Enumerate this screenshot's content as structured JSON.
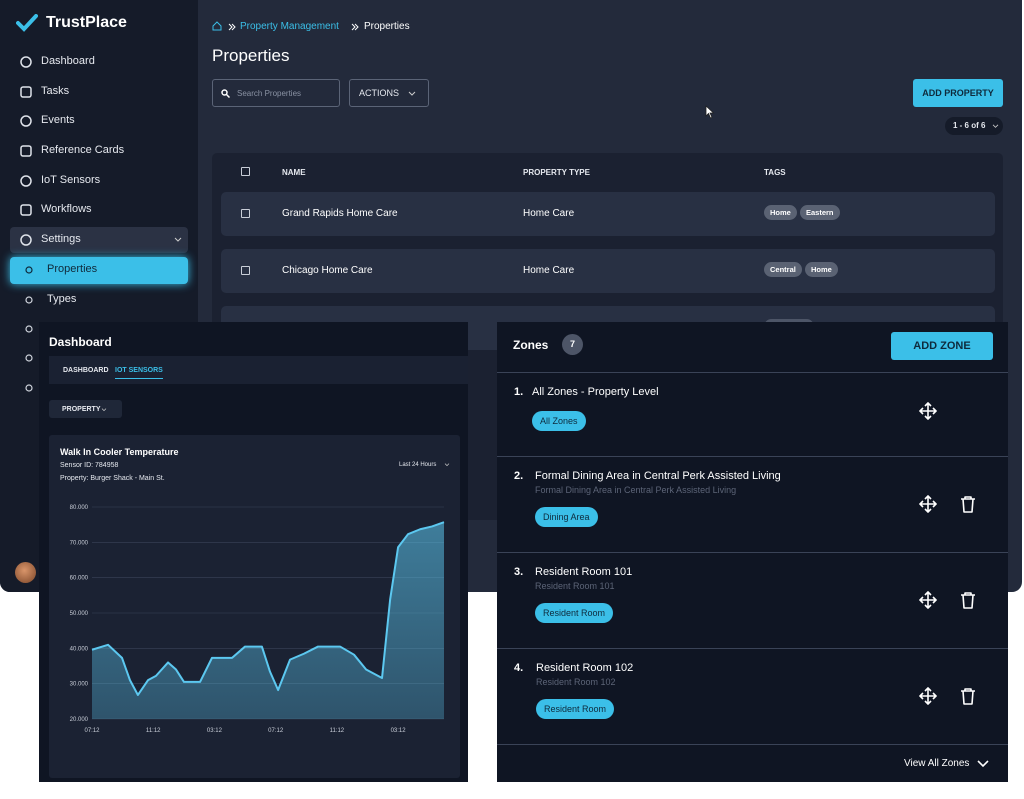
{
  "sidebar": {
    "brand": "TrustPlace",
    "nav": [
      "Dashboard",
      "Tasks",
      "Events",
      "Reference Cards",
      "IoT Sensors",
      "Workflows",
      "Settings"
    ],
    "sub_nav": [
      "Properties",
      "Types"
    ]
  },
  "breadcrumb": [
    "Property Management",
    "Properties"
  ],
  "page_title": "Properties",
  "search_placeholder": "Search Properties",
  "actions_button": "ACTIONS",
  "add_button": "ADD PROPERTY",
  "pagination": "1 - 6 of 6",
  "table": {
    "columns": [
      "NAME",
      "PROPERTY TYPE",
      "TAGS"
    ],
    "rows": [
      {
        "name": "Grand Rapids Home Care",
        "type": "Home Care",
        "tags": [
          "Home",
          "Eastern"
        ]
      },
      {
        "name": "Chicago Home Care",
        "type": "Home Care",
        "tags": [
          "Central",
          "Home"
        ]
      }
    ]
  },
  "dashboard": {
    "title": "Dashboard",
    "tabs": [
      "DASHBOARD",
      "IOT SENSORS"
    ],
    "filter": "PROPERTY",
    "sensor_id": "Sensor ID: 784958",
    "property": "Property: Burger Shack - Main St.",
    "range": "Last 24 Hours"
  },
  "chart_data": {
    "type": "area",
    "title": "Walk In Cooler Temperature",
    "color": "#5cc8f0",
    "grid": true,
    "x": [
      0,
      1.05,
      1.96,
      2.48,
      3.0,
      3.66,
      4.18,
      4.97,
      5.49,
      6.01,
      7.06,
      7.84,
      9.15,
      10.0,
      11.1,
      11.63,
      12.16,
      12.94,
      13.86,
      14.77,
      16.21,
      17.12,
      17.91,
      18.95,
      19.48,
      20.0,
      20.65,
      21.44,
      22.22,
      23.0
    ],
    "values": [
      39.6,
      41,
      37.3,
      31,
      26.8,
      31,
      32.2,
      36,
      34,
      30.5,
      30.5,
      37.3,
      37.3,
      40.5,
      40.5,
      33.4,
      28.2,
      36.8,
      38.5,
      40.5,
      40.5,
      38.2,
      34,
      31.6,
      53.8,
      68.6,
      72.3,
      73.7,
      74.5,
      75.7
    ],
    "xlim": [
      0,
      23
    ],
    "ylim": [
      20,
      80
    ],
    "xticks": [
      {
        "value": 0,
        "label": "07:12"
      },
      {
        "value": 4,
        "label": "11:12"
      },
      {
        "value": 8,
        "label": "03:12"
      },
      {
        "value": 12,
        "label": "07:12"
      },
      {
        "value": 16,
        "label": "11:12"
      },
      {
        "value": 20,
        "label": "03:12"
      }
    ],
    "yticks": [
      {
        "value": 20,
        "label": "20.000"
      },
      {
        "value": 30,
        "label": "30.000"
      },
      {
        "value": 40,
        "label": "40.000"
      },
      {
        "value": 50,
        "label": "50.000"
      },
      {
        "value": 60,
        "label": "60.000"
      },
      {
        "value": 70,
        "label": "70.000"
      },
      {
        "value": 80,
        "label": "80.000"
      }
    ]
  },
  "zones": {
    "title": "Zones",
    "count": 7,
    "add_button": "ADD ZONE",
    "footer": "View All Zones",
    "items": [
      {
        "number": "1.",
        "name": "All Zones - Property Level",
        "tag": "All Zones"
      },
      {
        "number": "2.",
        "name": "Formal Dining Area in Central Perk Assisted Living",
        "subtitle": "Formal Dining Area in Central Perk Assisted Living",
        "tag": "Dining Area"
      },
      {
        "number": "3.",
        "name": "Resident Room 101",
        "subtitle": "Resident Room 101",
        "tag": "Resident Room"
      },
      {
        "number": "4.",
        "name": "Resident Room 102",
        "subtitle": "Resident Room 102",
        "tag": "Resident Room"
      }
    ]
  }
}
